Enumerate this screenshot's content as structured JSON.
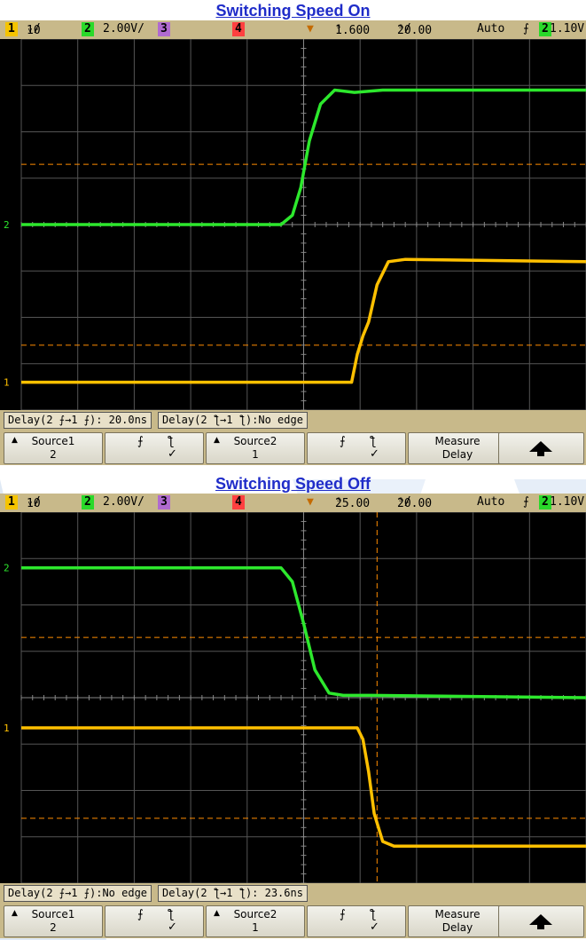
{
  "chart_data": [
    {
      "type": "line",
      "title": "Switching Speed On",
      "status_bar": {
        "ch1_num": "1",
        "ch1_scale": "10",
        "ch2_num": "2",
        "ch2_scale": "2.00V/",
        "ch3_num": "3",
        "ch4_num": "4",
        "delay": "1.600",
        "timebase": "20.00",
        "mode": "Auto",
        "trigger_source": "2",
        "trigger_level": "1.10V"
      },
      "grid": true,
      "xlim": [
        0,
        10
      ],
      "ylim": [
        0,
        8
      ],
      "series": [
        {
          "label": "2",
          "color": "#2de82d",
          "x": [
            0,
            4.6,
            4.8,
            4.95,
            5.1,
            5.3,
            5.55,
            5.9,
            6.4,
            10
          ],
          "y": [
            4.0,
            4.0,
            4.2,
            4.8,
            5.8,
            6.6,
            6.9,
            6.85,
            6.9,
            6.9
          ]
        },
        {
          "label": "1",
          "color": "#ffc000",
          "x": [
            0,
            5.85,
            5.95,
            6.05,
            6.15,
            6.3,
            6.5,
            6.8,
            10
          ],
          "y": [
            0.6,
            0.6,
            1.2,
            1.6,
            1.9,
            2.7,
            3.2,
            3.25,
            3.2
          ]
        }
      ],
      "ref_lines": [
        {
          "axis": "y",
          "value": 5.3,
          "color": "#ff8c00"
        },
        {
          "axis": "y",
          "value": 1.4,
          "color": "#ff8c00"
        }
      ],
      "measurements": [
        "Delay(2",
        "→1",
        "): 20.0ns",
        "Delay(2",
        "→1",
        "):No edge"
      ],
      "softkeys": {
        "source1_label": "Source1",
        "source1_value": "2",
        "source2_label": "Source2",
        "source2_value": "1",
        "measure_line1": "Measure",
        "measure_line2": "Delay"
      }
    },
    {
      "type": "line",
      "title": "Switching Speed Off",
      "status_bar": {
        "ch1_num": "1",
        "ch1_scale": "10",
        "ch2_num": "2",
        "ch2_scale": "2.00V/",
        "ch3_num": "3",
        "ch4_num": "4",
        "delay": "25.00",
        "timebase": "20.00",
        "mode": "Auto",
        "trigger_source": "2",
        "trigger_level": "1.10V"
      },
      "grid": true,
      "xlim": [
        0,
        10
      ],
      "ylim": [
        0,
        8
      ],
      "series": [
        {
          "label": "2",
          "color": "#2de82d",
          "x": [
            0,
            4.6,
            4.8,
            5.0,
            5.2,
            5.45,
            5.7,
            6.2,
            10
          ],
          "y": [
            6.8,
            6.8,
            6.5,
            5.6,
            4.6,
            4.1,
            4.05,
            4.05,
            4.0
          ]
        },
        {
          "label": "1",
          "color": "#ffc000",
          "x": [
            0,
            5.95,
            6.05,
            6.15,
            6.25,
            6.4,
            6.6,
            7.0,
            10
          ],
          "y": [
            3.35,
            3.35,
            3.1,
            2.4,
            1.5,
            0.9,
            0.8,
            0.8,
            0.8
          ]
        }
      ],
      "ref_lines": [
        {
          "axis": "y",
          "value": 5.3,
          "color": "#ff8c00"
        },
        {
          "axis": "y",
          "value": 1.4,
          "color": "#ff8c00"
        },
        {
          "axis": "x",
          "value": 6.3,
          "color": "#ff8c00"
        }
      ],
      "measurements": [
        "Delay(2",
        "→1",
        "):No edge",
        "Delay(2",
        "→1",
        "): 23.6ns"
      ],
      "softkeys": {
        "source1_label": "Source1",
        "source1_value": "2",
        "source2_label": "Source2",
        "source2_value": "1",
        "measure_line1": "Measure",
        "measure_line2": "Delay"
      }
    }
  ]
}
